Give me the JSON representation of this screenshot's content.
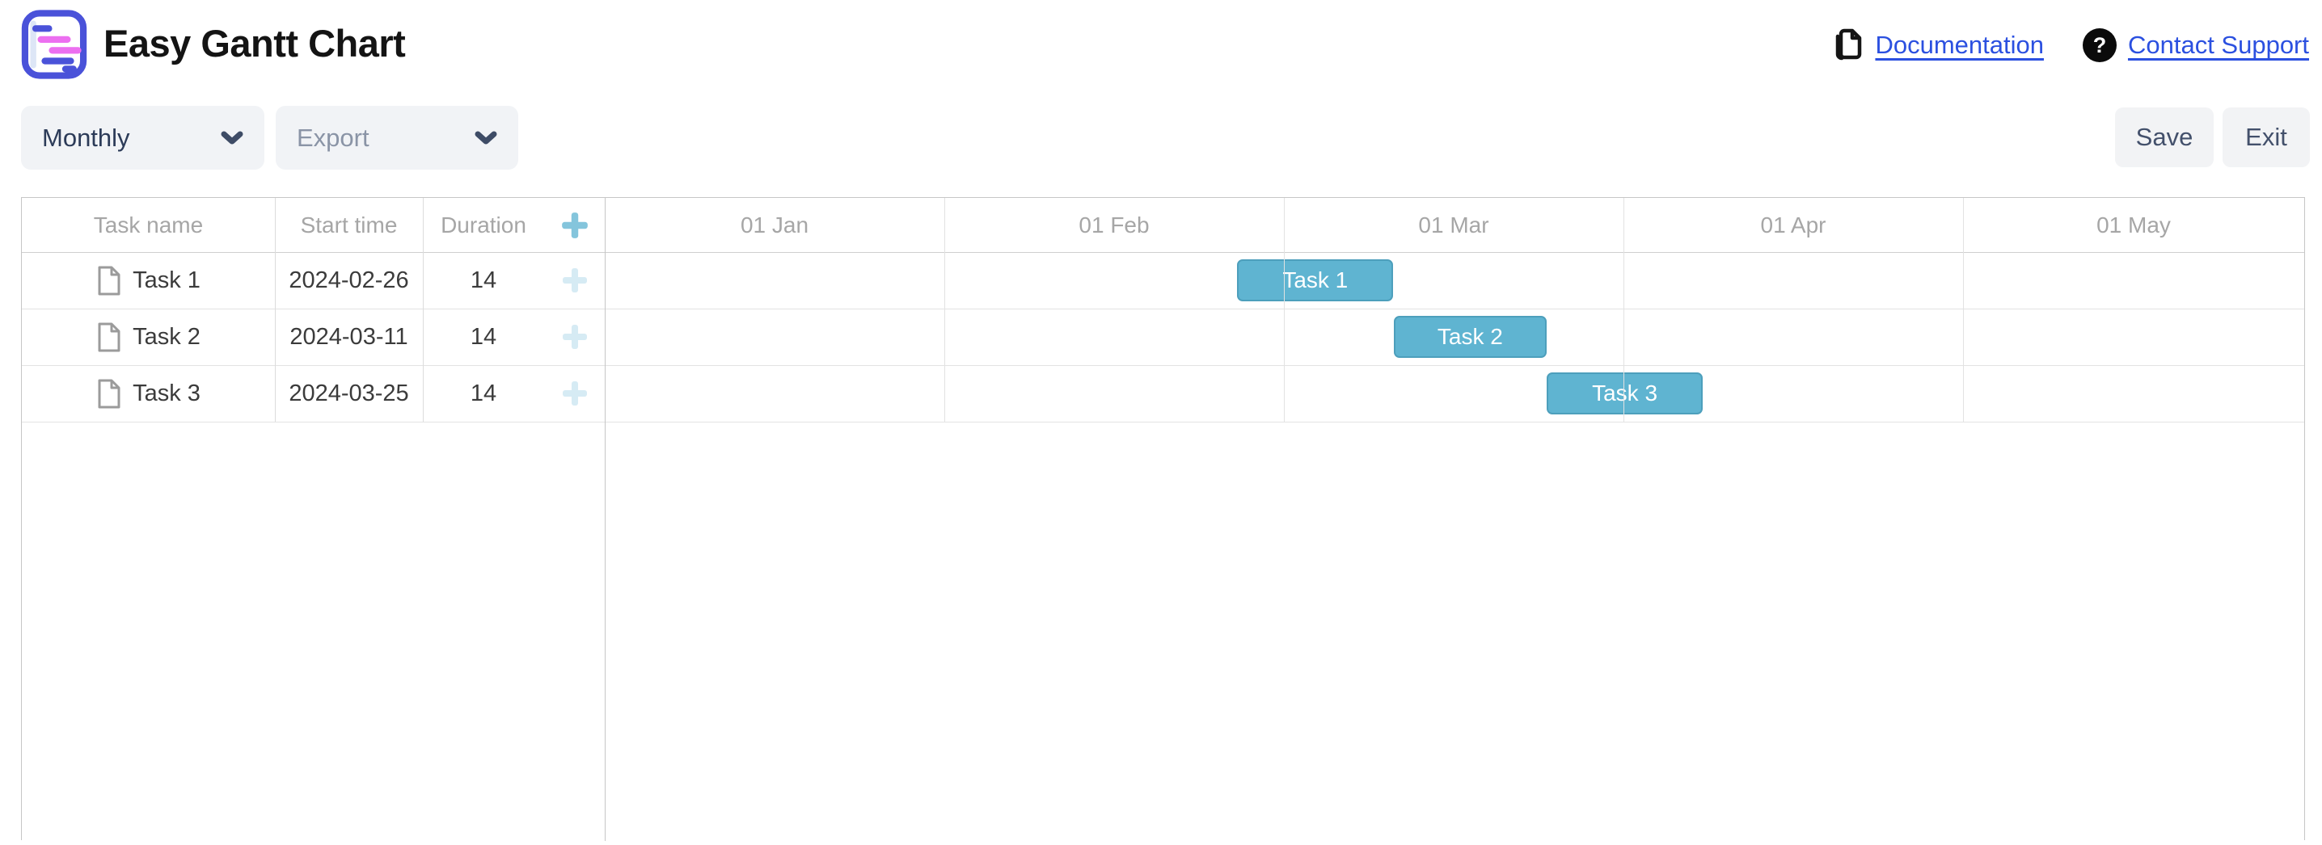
{
  "header": {
    "title": "Easy Gantt Chart",
    "logo_icon": "gantt-logo-icon",
    "links": {
      "documentation": {
        "label": "Documentation",
        "icon": "pages-icon"
      },
      "contact_support": {
        "label": "Contact Support",
        "icon": "question-circle-icon"
      }
    }
  },
  "toolbar": {
    "view_select": {
      "value": "Monthly",
      "icon": "chevron-down-icon"
    },
    "export_select": {
      "value": "Export",
      "icon": "chevron-down-icon"
    },
    "save_label": "Save",
    "exit_label": "Exit"
  },
  "grid": {
    "columns": [
      "Task name",
      "Start time",
      "Duration"
    ],
    "add_column_icon": "plus-icon",
    "row_icon": "file-icon"
  },
  "chart_data": {
    "type": "gantt",
    "scale": [
      "01 Jan",
      "01 Feb",
      "01 Mar",
      "01 Apr",
      "01 May"
    ],
    "year": 2024,
    "tasks": [
      {
        "name": "Task 1",
        "start": "2024-02-26",
        "duration": 14
      },
      {
        "name": "Task 2",
        "start": "2024-03-11",
        "duration": 14
      },
      {
        "name": "Task 3",
        "start": "2024-03-25",
        "duration": 14
      }
    ]
  },
  "colors": {
    "bar_fill": "#5fb4d1",
    "bar_border": "#4d9fbc",
    "link_blue": "#2b50e0",
    "plus_header": "#84c5dc",
    "plus_row": "#d6ebf4",
    "logo_indigo": "#4a52d9",
    "logo_pink": "#ec6ff0"
  }
}
